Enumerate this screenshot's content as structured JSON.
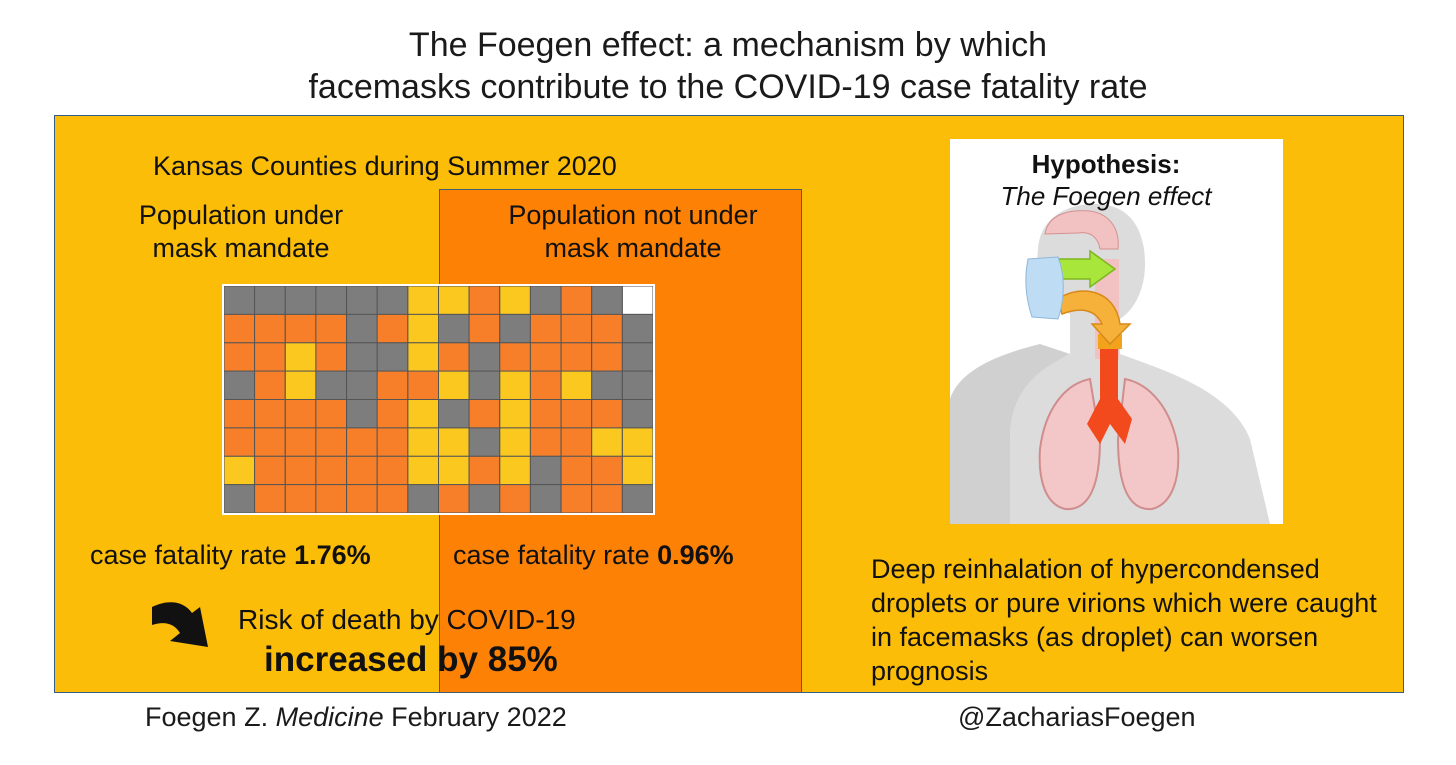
{
  "title": {
    "line1": "The Foegen effect: a mechanism by which",
    "line2": "facemasks contribute to the COVID-19 case fatality rate"
  },
  "left": {
    "heading": "Kansas Counties during Summer 2020",
    "mandate_label_1": "Population under",
    "mandate_label_2": "mask mandate",
    "no_mandate_label_1": "Population not under",
    "no_mandate_label_2": "mask mandate",
    "cfr_prefix": "case fatality rate ",
    "cfr_mandate": "1.76%",
    "cfr_no_mandate": "0.96%",
    "risk_line": "Risk of death by COVID-19",
    "risk_value": "increased by 85%"
  },
  "hypothesis": {
    "title": "Hypothesis:",
    "subtitle": "The Foegen effect",
    "description": "Deep reinhalation of hypercondensed droplets or pure virions which were caught in facemasks (as droplet) can worsen prognosis"
  },
  "footer": {
    "citation_author": "Foegen Z. ",
    "citation_journal": "Medicine",
    "citation_date": " February 2022",
    "handle": "@ZachariasFoegen"
  },
  "colors": {
    "panel_yellow": "#fbbd07",
    "column_orange": "#fc8104",
    "county_orange": "#f77f2a",
    "county_gray": "#7d7d7d",
    "county_yellow": "#fac81e"
  }
}
